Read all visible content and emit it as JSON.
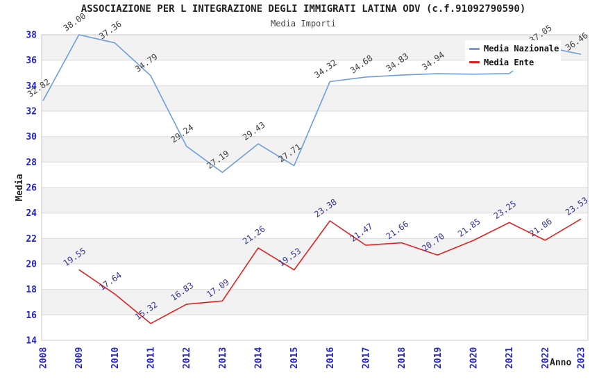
{
  "header": {
    "title": "ASSOCIAZIONE PER L INTEGRAZIONE DEGLI IMMIGRATI LATINA ODV (c.f.91092790590)",
    "subtitle": "Media Importi"
  },
  "axes": {
    "y_title": "Media",
    "x_title": "Anno",
    "tick_color": "#2323CC",
    "y_ticks": [
      38,
      36,
      34,
      32,
      30,
      28,
      26,
      24,
      22,
      20,
      18,
      16,
      14
    ],
    "x_ticks": [
      "2008",
      "2009",
      "2010",
      "2011",
      "2012",
      "2013",
      "2014",
      "2015",
      "2016",
      "2017",
      "2018",
      "2019",
      "2020",
      "2021",
      "2022",
      "2023"
    ]
  },
  "legend": {
    "items": [
      {
        "label": "Media Nazionale",
        "color": "#6D9EDB"
      },
      {
        "label": "Media Ente",
        "color": "#E02222"
      }
    ],
    "position": "top-right overlay on plot"
  },
  "style": {
    "band_fill": "#F2F2F2",
    "grid_color": "#D9D9D9",
    "border_color": "#C8C8C8",
    "background": "#FFFFFF"
  },
  "chart_data": {
    "type": "line",
    "title": "ASSOCIAZIONE PER L INTEGRAZIONE DEGLI IMMIGRATI LATINA ODV (c.f.91092790590)",
    "subtitle": "Media Importi",
    "xlabel": "Anno",
    "ylabel": "Media",
    "ylim": [
      14,
      38
    ],
    "ytick_step": 2,
    "grid": "horizontal gridlines every 2 units with alternating gray bands",
    "legend_position": "top-right overlay",
    "categories": [
      "2008",
      "2009",
      "2010",
      "2011",
      "2012",
      "2013",
      "2014",
      "2015",
      "2016",
      "2017",
      "2018",
      "2019",
      "2020",
      "2021",
      "2022",
      "2023"
    ],
    "series": [
      {
        "name": "Media Nazionale",
        "color": "#6D9EDB",
        "label_color": "#3F3F3F",
        "x": [
          "2008",
          "2009",
          "2010",
          "2011",
          "2012",
          "2013",
          "2014",
          "2015",
          "2016",
          "2017",
          "2018",
          "2019",
          "2020",
          "2021",
          "2022",
          "2023"
        ],
        "values": [
          32.82,
          38.0,
          37.36,
          34.79,
          29.24,
          27.19,
          29.43,
          27.71,
          34.32,
          34.68,
          34.83,
          34.94,
          34.9,
          34.95,
          37.05,
          36.46
        ],
        "hidden_label_indexes": [
          12,
          13
        ],
        "labels_hidden_by_legend": "2020 and 2021 labels are covered by the legend box; those two values estimated from the visible line position"
      },
      {
        "name": "Media Ente",
        "color": "#E02222",
        "label_color": "#333399",
        "x": [
          "2009",
          "2010",
          "2011",
          "2012",
          "2013",
          "2014",
          "2015",
          "2016",
          "2017",
          "2018",
          "2019",
          "2020",
          "2021",
          "2022",
          "2023"
        ],
        "values": [
          19.55,
          17.64,
          15.32,
          16.83,
          17.09,
          21.26,
          19.53,
          23.38,
          21.47,
          21.66,
          20.7,
          21.85,
          23.25,
          21.86,
          23.53
        ]
      }
    ]
  }
}
